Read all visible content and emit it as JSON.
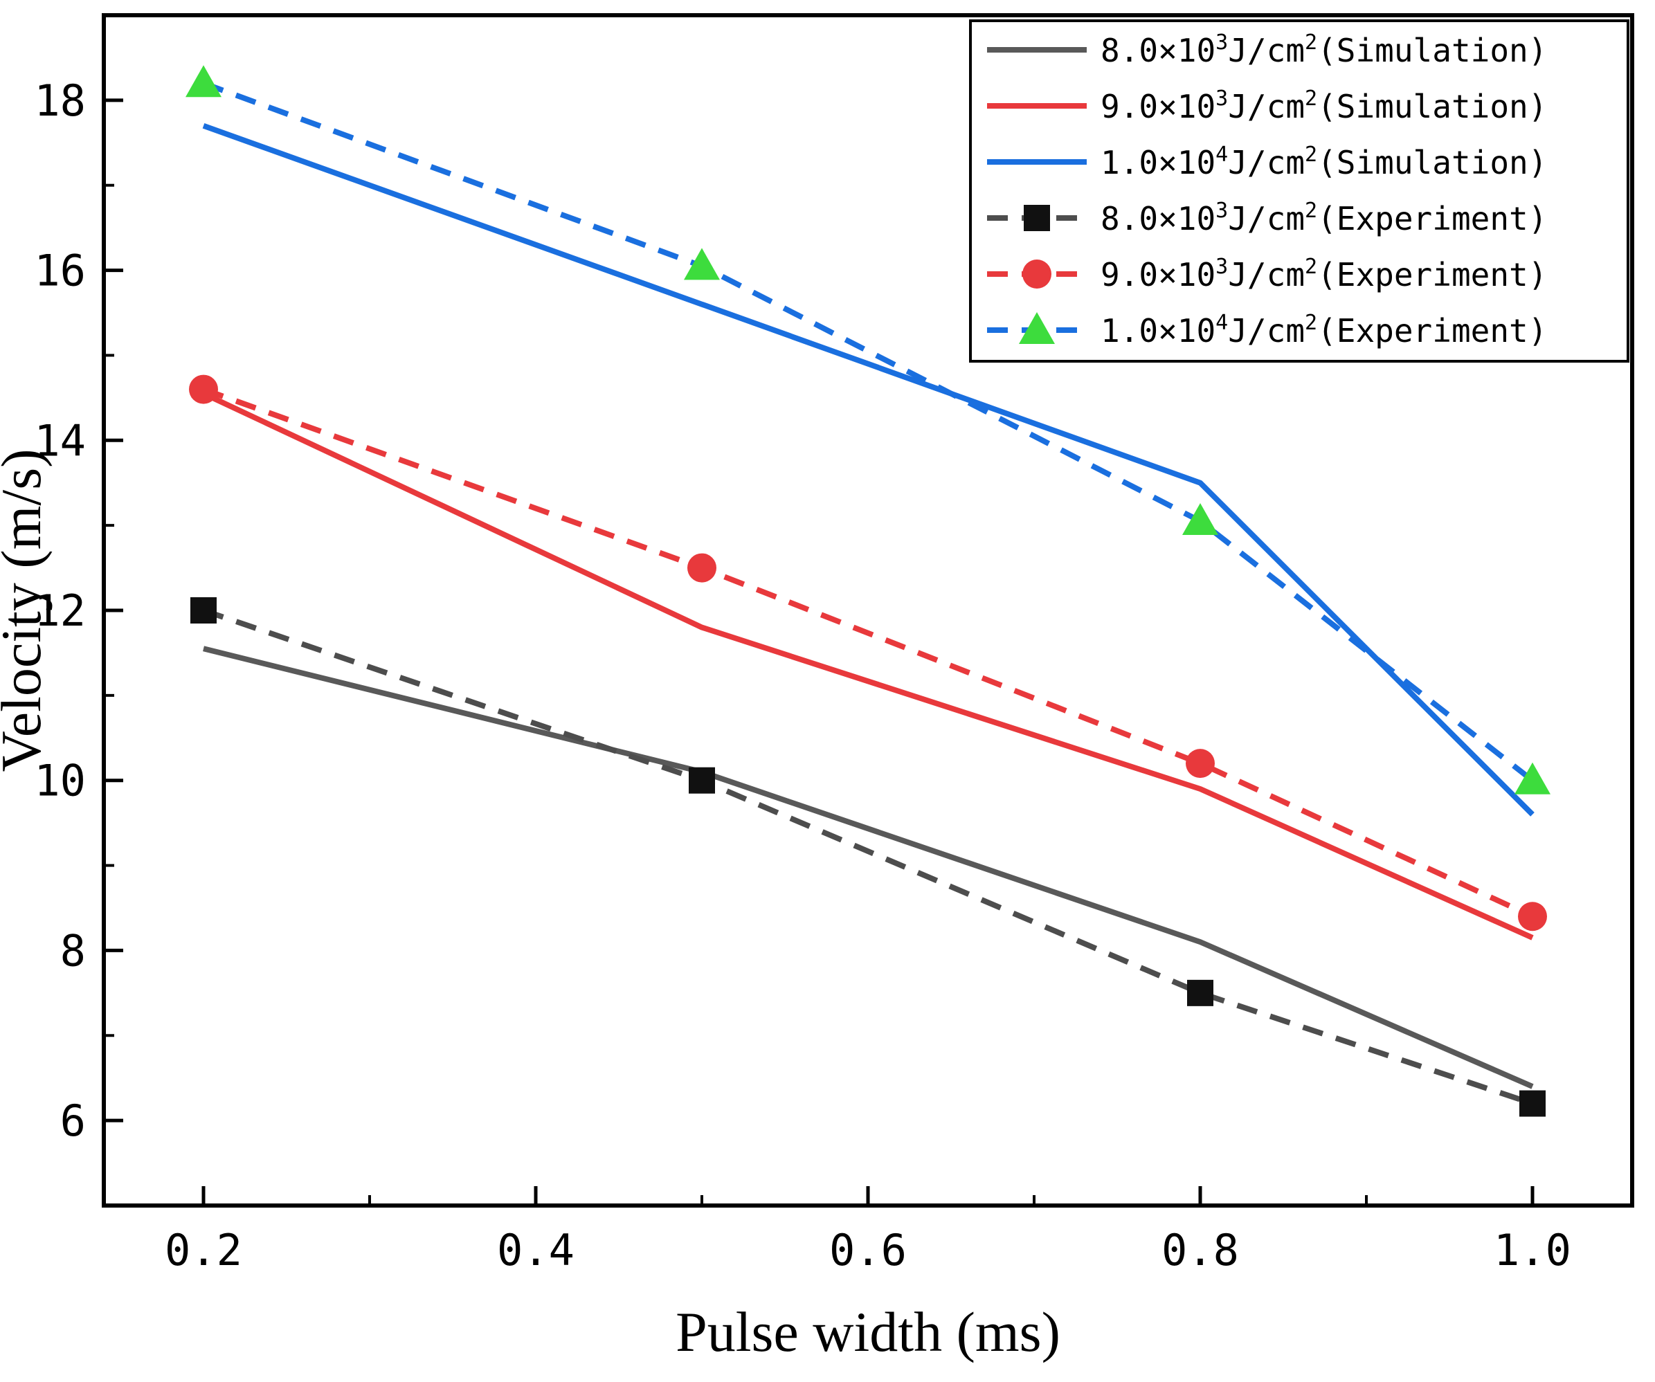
{
  "chart_data": {
    "type": "line",
    "title": "",
    "xlabel": "Pulse width (ms)",
    "ylabel": "Velocity (m/s)",
    "x": [
      0.2,
      0.5,
      0.8,
      1.0
    ],
    "xlim": [
      0.14,
      1.06
    ],
    "ylim": [
      5,
      19
    ],
    "xticks": [
      0.2,
      0.4,
      0.6,
      0.8,
      1.0
    ],
    "xtick_labels": [
      "0.2",
      "0.4",
      "0.6",
      "0.8",
      "1.0"
    ],
    "yticks": [
      6,
      8,
      10,
      12,
      14,
      16,
      18
    ],
    "ytick_labels": [
      "6",
      "8",
      "10",
      "12",
      "14",
      "16",
      "18"
    ],
    "xminor": [
      0.3,
      0.5,
      0.7,
      0.9
    ],
    "yminor": [
      7,
      9,
      11,
      13,
      15,
      17
    ],
    "grid": false,
    "legend_position": "top-right",
    "series": [
      {
        "name": "8.0×10^3^J/cm^2^(Simulation)",
        "values": [
          11.55,
          10.1,
          8.1,
          6.4
        ],
        "color": "#595959",
        "style": "solid",
        "marker": "none"
      },
      {
        "name": "9.0×10^3^J/cm^2^(Simulation)",
        "values": [
          14.55,
          11.8,
          9.9,
          8.15
        ],
        "color": "#e8393c",
        "style": "solid",
        "marker": "none"
      },
      {
        "name": "1.0×10^4^J/cm^2^(Simulation)",
        "values": [
          17.7,
          15.6,
          13.5,
          9.6
        ],
        "color": "#1a6fdf",
        "style": "solid",
        "marker": "none"
      },
      {
        "name": "8.0×10^3^J/cm^2^(Experiment)",
        "values": [
          12.0,
          10.0,
          7.5,
          6.2
        ],
        "color": "#4d4d4d",
        "style": "dashed",
        "marker": "square",
        "marker_color": "#111111"
      },
      {
        "name": "9.0×10^3^J/cm^2^(Experiment)",
        "values": [
          14.6,
          12.5,
          10.2,
          8.4
        ],
        "color": "#e8393c",
        "style": "dashed",
        "marker": "circle",
        "marker_color": "#e8393c"
      },
      {
        "name": "1.0×10^4^J/cm^2^(Experiment)",
        "values": [
          18.2,
          16.05,
          13.05,
          10.0
        ],
        "color": "#1a6fdf",
        "style": "dashed",
        "marker": "triangle",
        "marker_color": "#3ddc3d"
      }
    ]
  },
  "colors": {
    "axis": "#000000",
    "background": "#ffffff",
    "gray_series": "#595959",
    "red_series": "#e8393c",
    "blue_series": "#1a6fdf",
    "green_marker": "#3ddc3d",
    "black_marker": "#111111"
  }
}
